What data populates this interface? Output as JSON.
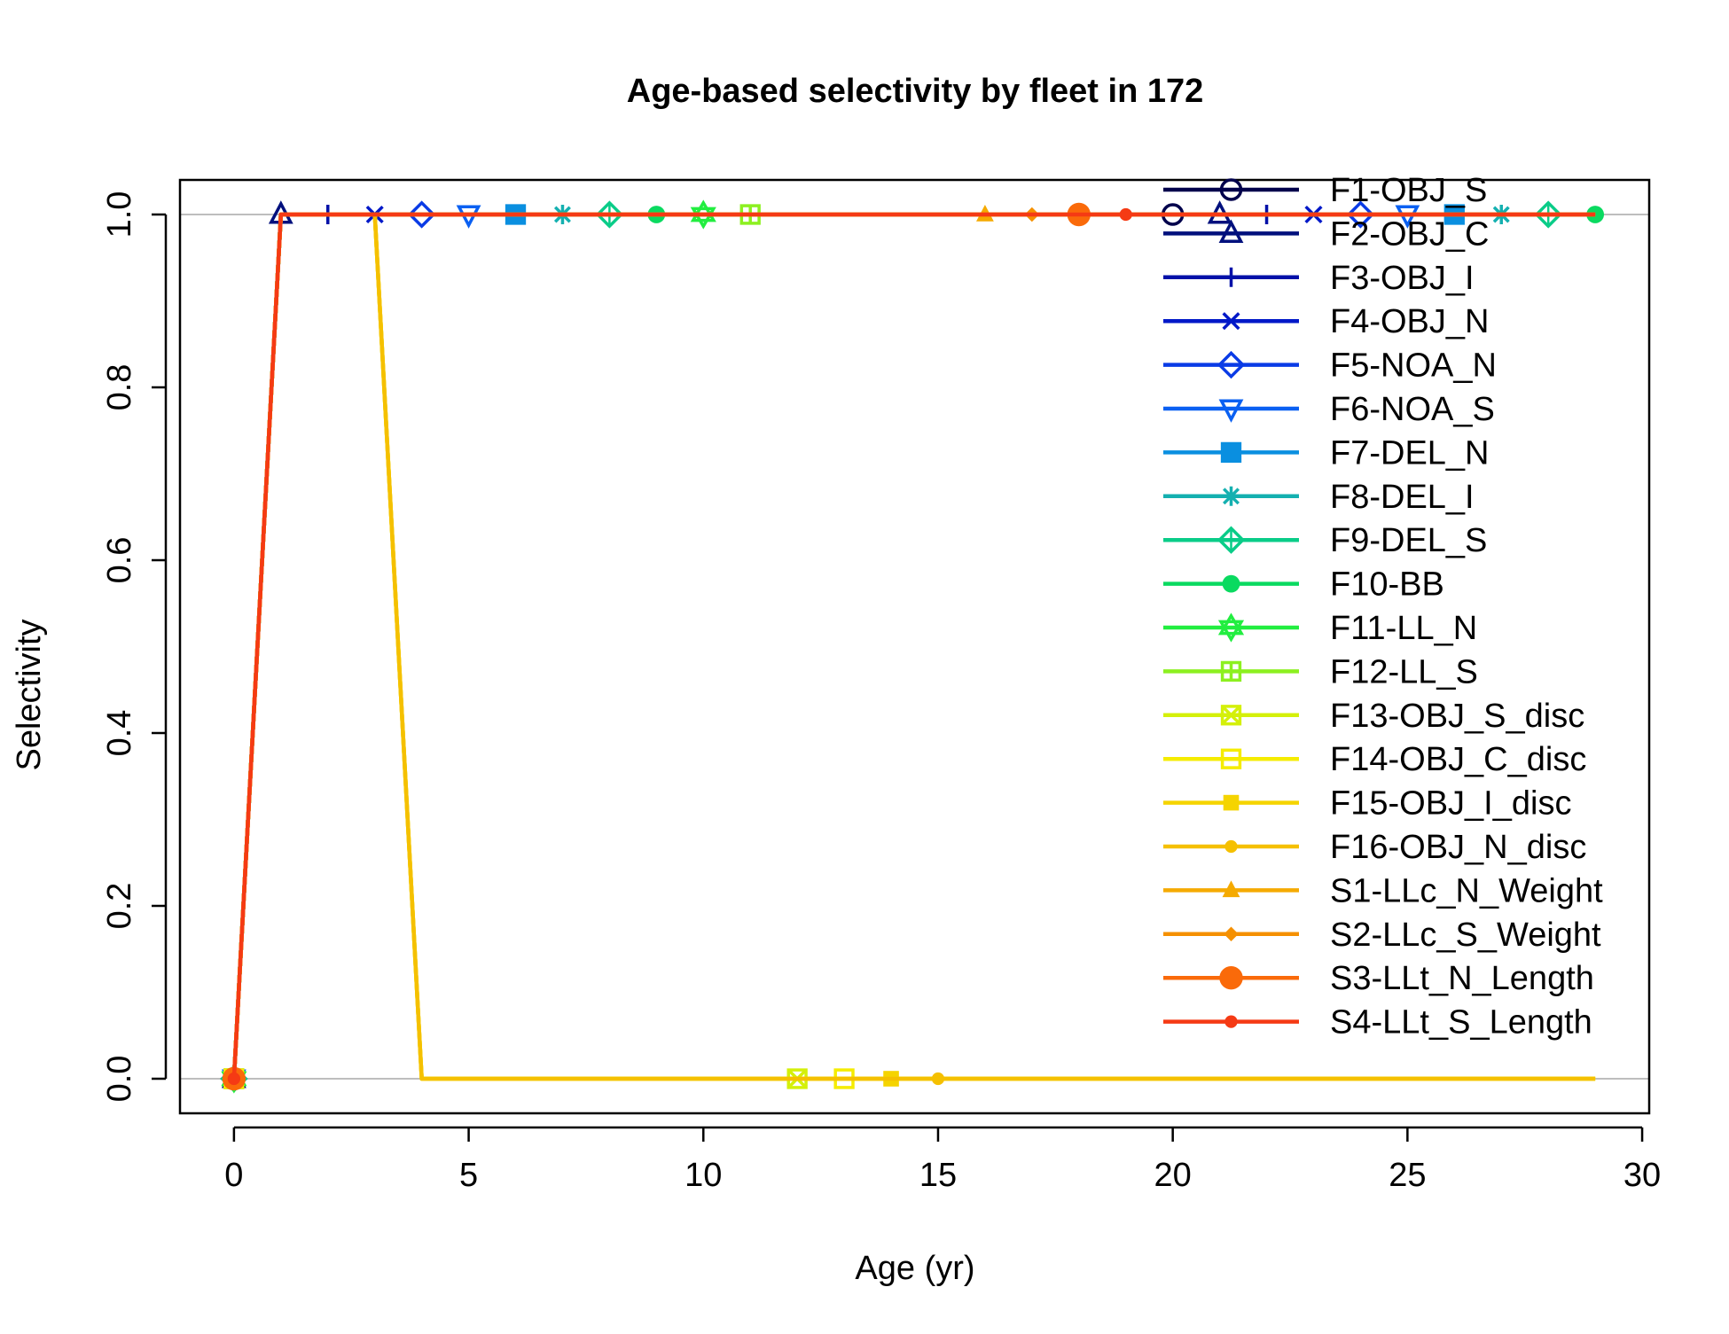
{
  "chart_data": {
    "type": "line",
    "title": "Age-based selectivity by fleet in 172",
    "xlabel": "Age (yr)",
    "ylabel": "Selectivity",
    "xlim": [
      -1.15,
      30.15
    ],
    "ylim": [
      -0.04,
      1.04
    ],
    "x_ticks": [
      "0",
      "5",
      "10",
      "15",
      "20",
      "25",
      "30"
    ],
    "y_ticks": [
      "0.0",
      "0.2",
      "0.4",
      "0.6",
      "0.8",
      "1.0"
    ],
    "grid": "horizontal reference lines at 0 and 1",
    "legend_position": "top-right",
    "x": [
      0,
      1,
      2,
      3,
      4,
      5,
      6,
      7,
      8,
      9,
      10,
      11,
      12,
      13,
      14,
      15,
      16,
      17,
      18,
      19,
      20,
      21,
      22,
      23,
      24,
      25,
      26,
      27,
      28,
      29
    ],
    "series": [
      {
        "name": "F1-OBJ_S",
        "color": "#00004C",
        "marker": "circle-open",
        "values": [
          0,
          1,
          1,
          1,
          1,
          1,
          1,
          1,
          1,
          1,
          1,
          1,
          1,
          1,
          1,
          1,
          1,
          1,
          1,
          1,
          1,
          1,
          1,
          1,
          1,
          1,
          1,
          1,
          1,
          1
        ]
      },
      {
        "name": "F2-OBJ_C",
        "color": "#00107D",
        "marker": "triangle-open",
        "values": [
          0,
          1,
          1,
          1,
          1,
          1,
          1,
          1,
          1,
          1,
          1,
          1,
          1,
          1,
          1,
          1,
          1,
          1,
          1,
          1,
          1,
          1,
          1,
          1,
          1,
          1,
          1,
          1,
          1,
          1
        ]
      },
      {
        "name": "F3-OBJ_I",
        "color": "#0010A8",
        "marker": "plus",
        "values": [
          0,
          1,
          1,
          1,
          1,
          1,
          1,
          1,
          1,
          1,
          1,
          1,
          1,
          1,
          1,
          1,
          1,
          1,
          1,
          1,
          1,
          1,
          1,
          1,
          1,
          1,
          1,
          1,
          1,
          1
        ]
      },
      {
        "name": "F4-OBJ_N",
        "color": "#0018C8",
        "marker": "cross",
        "values": [
          0,
          1,
          1,
          1,
          1,
          1,
          1,
          1,
          1,
          1,
          1,
          1,
          1,
          1,
          1,
          1,
          1,
          1,
          1,
          1,
          1,
          1,
          1,
          1,
          1,
          1,
          1,
          1,
          1,
          1
        ]
      },
      {
        "name": "F5-NOA_N",
        "color": "#0A3BE6",
        "marker": "diamond-open",
        "values": [
          0,
          1,
          1,
          1,
          1,
          1,
          1,
          1,
          1,
          1,
          1,
          1,
          1,
          1,
          1,
          1,
          1,
          1,
          1,
          1,
          1,
          1,
          1,
          1,
          1,
          1,
          1,
          1,
          1,
          1
        ]
      },
      {
        "name": "F6-NOA_S",
        "color": "#0A60F2",
        "marker": "triangle-down-open",
        "values": [
          0,
          1,
          1,
          1,
          1,
          1,
          1,
          1,
          1,
          1,
          1,
          1,
          1,
          1,
          1,
          1,
          1,
          1,
          1,
          1,
          1,
          1,
          1,
          1,
          1,
          1,
          1,
          1,
          1,
          1
        ]
      },
      {
        "name": "F7-DEL_N",
        "color": "#0A8FE0",
        "marker": "square-x",
        "values": [
          0,
          1,
          1,
          1,
          1,
          1,
          1,
          1,
          1,
          1,
          1,
          1,
          1,
          1,
          1,
          1,
          1,
          1,
          1,
          1,
          1,
          1,
          1,
          1,
          1,
          1,
          1,
          1,
          1,
          1
        ]
      },
      {
        "name": "F8-DEL_I",
        "color": "#14B0B0",
        "marker": "asterisk",
        "values": [
          0,
          1,
          1,
          1,
          1,
          1,
          1,
          1,
          1,
          1,
          1,
          1,
          1,
          1,
          1,
          1,
          1,
          1,
          1,
          1,
          1,
          1,
          1,
          1,
          1,
          1,
          1,
          1,
          1,
          1
        ]
      },
      {
        "name": "F9-DEL_S",
        "color": "#0ACC88",
        "marker": "diamond-plus",
        "values": [
          0,
          1,
          1,
          1,
          1,
          1,
          1,
          1,
          1,
          1,
          1,
          1,
          1,
          1,
          1,
          1,
          1,
          1,
          1,
          1,
          1,
          1,
          1,
          1,
          1,
          1,
          1,
          1,
          1,
          1
        ]
      },
      {
        "name": "F10-BB",
        "color": "#0ADA60",
        "marker": "circle-filled",
        "values": [
          0,
          1,
          1,
          1,
          1,
          1,
          1,
          1,
          1,
          1,
          1,
          1,
          1,
          1,
          1,
          1,
          1,
          1,
          1,
          1,
          1,
          1,
          1,
          1,
          1,
          1,
          1,
          1,
          1,
          1
        ]
      },
      {
        "name": "F11-LL_N",
        "color": "#22EE40",
        "marker": "star-of-david",
        "values": [
          0,
          1,
          1,
          1,
          1,
          1,
          1,
          1,
          1,
          1,
          1,
          1,
          1,
          1,
          1,
          1,
          1,
          1,
          1,
          1,
          1,
          1,
          1,
          1,
          1,
          1,
          1,
          1,
          1,
          1
        ]
      },
      {
        "name": "F12-LL_S",
        "color": "#8CF020",
        "marker": "square-plus",
        "values": [
          0,
          1,
          1,
          1,
          1,
          1,
          1,
          1,
          1,
          1,
          1,
          1,
          1,
          1,
          1,
          1,
          1,
          1,
          1,
          1,
          1,
          1,
          1,
          1,
          1,
          1,
          1,
          1,
          1,
          1
        ]
      },
      {
        "name": "F13-OBJ_S_disc",
        "color": "#D4F00A",
        "marker": "square-x-filled",
        "values": [
          0,
          1,
          1,
          1,
          0,
          0,
          0,
          0,
          0,
          0,
          0,
          0,
          0,
          0,
          0,
          0,
          0,
          0,
          0,
          0,
          0,
          0,
          0,
          0,
          0,
          0,
          0,
          0,
          0,
          0
        ]
      },
      {
        "name": "F14-OBJ_C_disc",
        "color": "#F5EC00",
        "marker": "square-open",
        "values": [
          0,
          1,
          1,
          1,
          0,
          0,
          0,
          0,
          0,
          0,
          0,
          0,
          0,
          0,
          0,
          0,
          0,
          0,
          0,
          0,
          0,
          0,
          0,
          0,
          0,
          0,
          0,
          0,
          0,
          0
        ]
      },
      {
        "name": "F15-OBJ_I_disc",
        "color": "#F5D400",
        "marker": "square-filled",
        "values": [
          0,
          1,
          1,
          1,
          0,
          0,
          0,
          0,
          0,
          0,
          0,
          0,
          0,
          0,
          0,
          0,
          0,
          0,
          0,
          0,
          0,
          0,
          0,
          0,
          0,
          0,
          0,
          0,
          0,
          0
        ]
      },
      {
        "name": "F16-OBJ_N_disc",
        "color": "#F5C000",
        "marker": "dot",
        "values": [
          0,
          1,
          1,
          1,
          0,
          0,
          0,
          0,
          0,
          0,
          0,
          0,
          0,
          0,
          0,
          0,
          0,
          0,
          0,
          0,
          0,
          0,
          0,
          0,
          0,
          0,
          0,
          0,
          0,
          0
        ]
      },
      {
        "name": "S1-LLc_N_Weight",
        "color": "#F5AA00",
        "marker": "triangle-filled",
        "values": [
          0,
          1,
          1,
          1,
          1,
          1,
          1,
          1,
          1,
          1,
          1,
          1,
          1,
          1,
          1,
          1,
          1,
          1,
          1,
          1,
          1,
          1,
          1,
          1,
          1,
          1,
          1,
          1,
          1,
          1
        ]
      },
      {
        "name": "S2-LLc_S_Weight",
        "color": "#F59000",
        "marker": "diamond-small",
        "values": [
          0,
          1,
          1,
          1,
          1,
          1,
          1,
          1,
          1,
          1,
          1,
          1,
          1,
          1,
          1,
          1,
          1,
          1,
          1,
          1,
          1,
          1,
          1,
          1,
          1,
          1,
          1,
          1,
          1,
          1
        ]
      },
      {
        "name": "S3-LLt_N_Length",
        "color": "#FA6A0A",
        "marker": "circle-big",
        "values": [
          0,
          1,
          1,
          1,
          1,
          1,
          1,
          1,
          1,
          1,
          1,
          1,
          1,
          1,
          1,
          1,
          1,
          1,
          1,
          1,
          1,
          1,
          1,
          1,
          1,
          1,
          1,
          1,
          1,
          1
        ]
      },
      {
        "name": "S4-LLt_S_Length",
        "color": "#F53A14",
        "marker": "dot",
        "values": [
          0,
          1,
          1,
          1,
          1,
          1,
          1,
          1,
          1,
          1,
          1,
          1,
          1,
          1,
          1,
          1,
          1,
          1,
          1,
          1,
          1,
          1,
          1,
          1,
          1,
          1,
          1,
          1,
          1,
          1
        ]
      }
    ]
  }
}
